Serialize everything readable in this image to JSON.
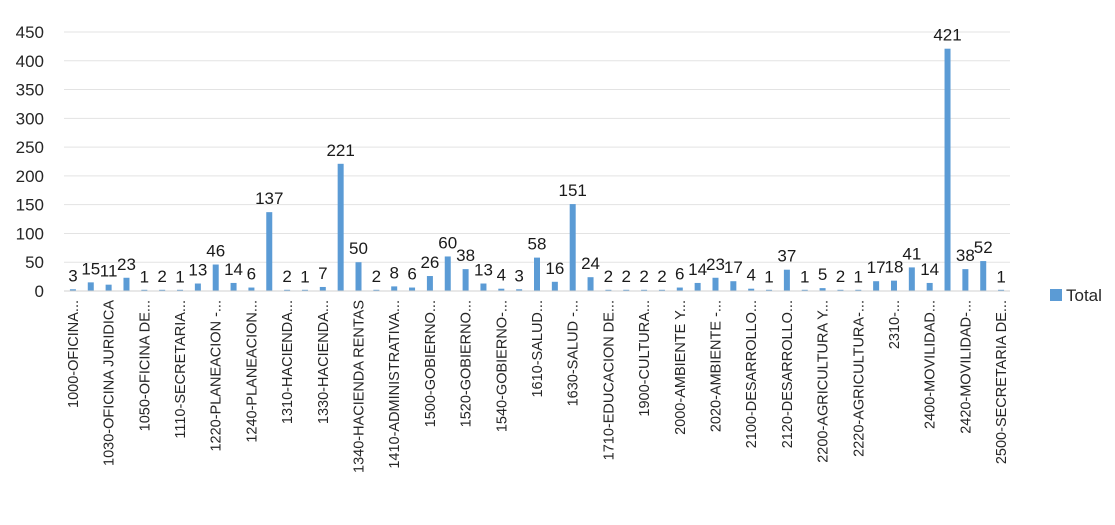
{
  "chart_data": {
    "type": "bar",
    "title": "",
    "xlabel": "",
    "ylabel": "",
    "ylim": [
      0,
      450
    ],
    "yticks": [
      0,
      50,
      100,
      150,
      200,
      250,
      300,
      350,
      400,
      450
    ],
    "grid": true,
    "legend_position": "right",
    "colors": {
      "bar": "#5b9bd5",
      "grid": "#e3e3e3",
      "text": "#262626"
    },
    "categories": [
      "1000-OFICINA...",
      "",
      "1030-OFICINA JURIDICA",
      "",
      "1050-OFICINA DE...",
      "",
      "1110-SECRETARIA...",
      "",
      "1220-PLANEACION -...",
      "",
      "1240-PLANEACION...",
      "",
      "1310-HACIENDA...",
      "",
      "1330-HACIENDA...",
      "",
      "1340-HACIENDA RENTAS",
      "",
      "1410-ADMINISTRATIVA...",
      "",
      "1500-GOBIERNO...",
      "",
      "1520-GOBIERNO...",
      "",
      "1540-GOBIERNO-...",
      "",
      "1610-SALUD...",
      "",
      "1630-SALUD -...",
      "",
      "1710-EDUCACION DE...",
      "",
      "1900-CULTURA...",
      "",
      "2000-AMBIENTE Y...",
      "",
      "2020-AMBIENTE -...",
      "",
      "2100-DESARROLLO...",
      "",
      "2120-DESARROLLO...",
      "",
      "2200-AGRICULTURA Y...",
      "",
      "2220-AGRICULTURA-...",
      "",
      "2310-...",
      "",
      "2400-MOVILIDAD...",
      "",
      "2420-MOVILIDAD-...",
      "",
      "2500-SECRETARIA DE..."
    ],
    "series": [
      {
        "name": "Total",
        "values": [
          3,
          15,
          11,
          23,
          1,
          2,
          1,
          13,
          46,
          14,
          6,
          137,
          2,
          1,
          7,
          221,
          50,
          2,
          8,
          6,
          26,
          60,
          38,
          13,
          4,
          3,
          58,
          16,
          151,
          24,
          2,
          2,
          2,
          2,
          6,
          14,
          23,
          17,
          4,
          1,
          37,
          1,
          5,
          2,
          1,
          17,
          18,
          41,
          14,
          421,
          38,
          52,
          1
        ]
      }
    ]
  }
}
